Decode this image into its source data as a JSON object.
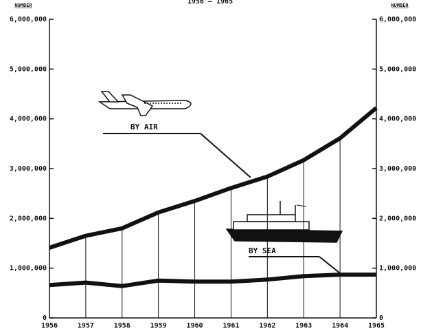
{
  "chart_data": {
    "type": "line",
    "subtitle": "1956 — 1965",
    "ylabel": "NUMBER",
    "y2label": "NUMBER",
    "x": [
      1956,
      1957,
      1958,
      1959,
      1960,
      1961,
      1962,
      1963,
      1964,
      1965
    ],
    "xlim": [
      1956,
      1965
    ],
    "xticks": [
      1956,
      1957,
      1958,
      1959,
      1960,
      1961,
      1962,
      1963,
      1964,
      1965
    ],
    "ylim": [
      0,
      6000000
    ],
    "yticks": [
      0,
      {
        "value": 1000000,
        "label": "1,000,000"
      },
      {
        "value": 2000000,
        "label": "2,000,000"
      },
      {
        "value": 3000000,
        "label": "3,000,000"
      },
      {
        "value": 4000000,
        "label": "4,000,000"
      },
      {
        "value": 5000000,
        "label": "5,000,000"
      },
      {
        "value": 6000000,
        "label": "6,000,000"
      }
    ],
    "y2lim": [
      0,
      6000000
    ],
    "y2ticks": [
      0,
      {
        "value": 1000000,
        "label": "1,000,000"
      },
      {
        "value": 2000000,
        "label": "2,000,000"
      },
      {
        "value": 3000000,
        "label": "3,000,000"
      },
      {
        "value": 4000000,
        "label": "4,000,000"
      },
      {
        "value": 5000000,
        "label": "5,000,000"
      },
      {
        "value": 6000000,
        "label": "6,000,000"
      }
    ],
    "series": [
      {
        "name": "BY AIR",
        "color": "#111111",
        "values": [
          1410000,
          1650000,
          1800000,
          2120000,
          2350000,
          2610000,
          2840000,
          3170000,
          3610000,
          4220000
        ]
      },
      {
        "name": "BY SEA",
        "color": "#111111",
        "values": [
          660000,
          710000,
          640000,
          750000,
          730000,
          730000,
          770000,
          840000,
          870000,
          870000
        ]
      }
    ]
  }
}
